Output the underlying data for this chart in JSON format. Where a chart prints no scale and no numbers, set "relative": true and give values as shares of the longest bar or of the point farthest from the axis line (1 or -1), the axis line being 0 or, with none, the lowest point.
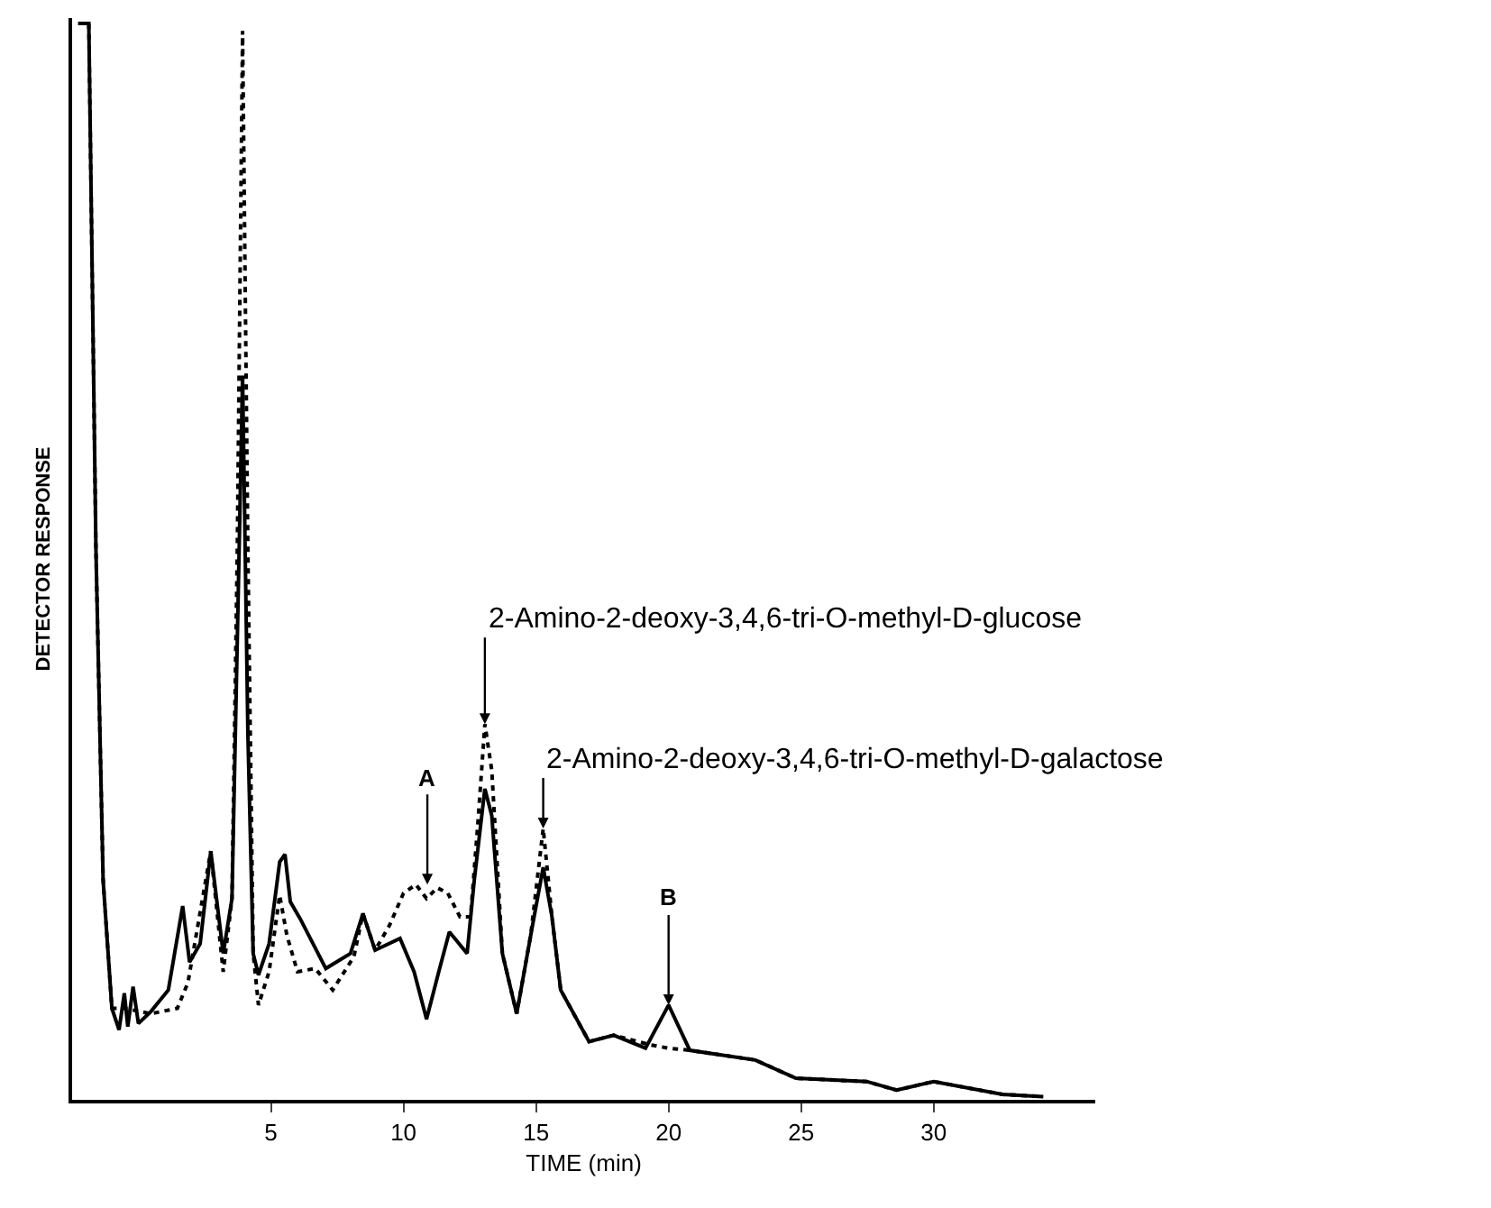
{
  "chart_data": {
    "type": "line",
    "relative": true,
    "xlabel": "TIME (min)",
    "ylabel": "DETECTOR RESPONSE",
    "xlim": [
      -2.5,
      36.1
    ],
    "xticks": [
      5,
      10,
      15,
      20,
      25,
      30
    ],
    "tick_labels": "x",
    "grid": false,
    "marker": "none",
    "series": [
      {
        "color": "#000000",
        "line_style": "solid",
        "x": [
          -2.27,
          -1.87,
          -1.6,
          -1.33,
          -1.0,
          -0.73,
          -0.53,
          -0.4,
          -0.2,
          0,
          0.47,
          1.13,
          1.67,
          1.93,
          2.33,
          2.73,
          3.2,
          3.53,
          3.8,
          3.93,
          4.13,
          4.33,
          4.53,
          4.93,
          5.33,
          5.53,
          5.73,
          6.13,
          7.07,
          8.0,
          8.47,
          8.93,
          9.87,
          10.4,
          10.87,
          11.33,
          11.73,
          12.4,
          12.67,
          13.07,
          13.33,
          13.73,
          14.27,
          14.8,
          15.27,
          15.6,
          15.93,
          17.0,
          17.93,
          19.13,
          20.0,
          20.8,
          23.27,
          24.8,
          27.47,
          28.6,
          30.0,
          32.6,
          34.13
        ],
        "values": [
          1.0,
          1.0,
          0.51,
          0.204,
          0.085,
          0.065,
          0.099,
          0.068,
          0.105,
          0.071,
          0.082,
          0.102,
          0.18,
          0.128,
          0.145,
          0.231,
          0.136,
          0.187,
          0.51,
          0.673,
          0.34,
          0.136,
          0.116,
          0.145,
          0.221,
          0.228,
          0.184,
          0.167,
          0.122,
          0.136,
          0.173,
          0.139,
          0.15,
          0.119,
          0.075,
          0.119,
          0.156,
          0.136,
          0.204,
          0.289,
          0.264,
          0.136,
          0.08,
          0.153,
          0.216,
          0.17,
          0.102,
          0.054,
          0.06,
          0.048,
          0.088,
          0.046,
          0.037,
          0.02,
          0.017,
          0.009,
          0.017,
          0.005,
          0.003
        ]
      },
      {
        "color": "#000000",
        "line_style": "dotted",
        "x": [
          -2.27,
          -1.87,
          -1.6,
          -1.33,
          -1.0,
          -0.53,
          0.47,
          1.47,
          1.87,
          2.73,
          3.2,
          3.53,
          3.73,
          3.93,
          4.13,
          4.33,
          4.53,
          4.93,
          5.33,
          5.6,
          6.0,
          6.67,
          7.33,
          8.13,
          8.47,
          8.93,
          9.47,
          10.0,
          10.47,
          10.87,
          11.27,
          11.67,
          12.13,
          12.53,
          12.8,
          13.07,
          13.33,
          13.73,
          14.27,
          14.8,
          15.27,
          15.6,
          15.93,
          17.0,
          17.93,
          19.33,
          20.0,
          20.8,
          23.27,
          24.8,
          27.47,
          28.6,
          30.0,
          32.6,
          34.13
        ],
        "values": [
          1.0,
          1.0,
          0.51,
          0.204,
          0.085,
          0.085,
          0.08,
          0.085,
          0.109,
          0.231,
          0.119,
          0.187,
          0.51,
          0.993,
          0.51,
          0.136,
          0.088,
          0.119,
          0.19,
          0.153,
          0.119,
          0.122,
          0.102,
          0.133,
          0.173,
          0.139,
          0.162,
          0.192,
          0.2,
          0.187,
          0.197,
          0.192,
          0.17,
          0.17,
          0.255,
          0.349,
          0.306,
          0.136,
          0.08,
          0.153,
          0.252,
          0.17,
          0.102,
          0.054,
          0.06,
          0.051,
          0.048,
          0.046,
          0.037,
          0.02,
          0.017,
          0.009,
          0.017,
          0.005,
          0.003
        ]
      }
    ],
    "annotations": [
      {
        "text": "2-Amino-2-deoxy-3,4,6-tri-O-methyl-D-glucose",
        "x": 13.07,
        "y": 0.349
      },
      {
        "text": "2-Amino-2-deoxy-3,4,6-tri-O-methyl-D-galactose",
        "x": 15.27,
        "y": 0.252
      },
      {
        "text": "A",
        "x": 10.9,
        "y": 0.2
      },
      {
        "text": "B",
        "x": 20.0,
        "y": 0.088
      }
    ]
  }
}
